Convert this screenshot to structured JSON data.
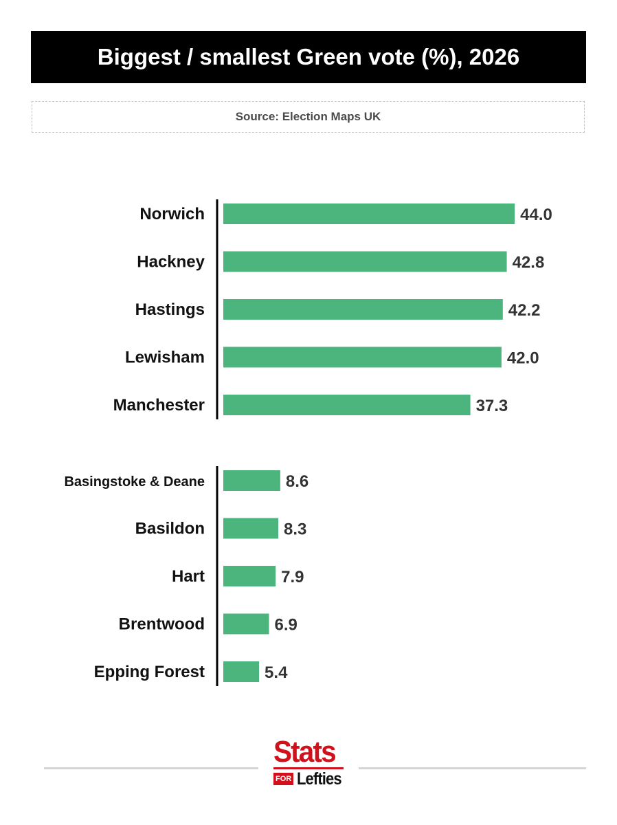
{
  "header": {
    "title": "Biggest / smallest Green vote (%), 2026",
    "source": "Source: Election Maps UK"
  },
  "chart_data": {
    "type": "bar",
    "orientation": "horizontal",
    "title": "Biggest / smallest Green vote (%), 2026",
    "bar_color": "#4cb57d",
    "groups": [
      {
        "categories": [
          "Norwich",
          "Hackney",
          "Hastings",
          "Lewisham",
          "Manchester"
        ],
        "values": [
          44.0,
          42.8,
          42.2,
          42.0,
          37.3
        ],
        "labels": [
          "44.0",
          "42.8",
          "42.2",
          "42.0",
          "37.3"
        ]
      },
      {
        "categories": [
          "Basingstoke & Deane",
          "Basildon",
          "Hart",
          "Brentwood",
          "Epping Forest"
        ],
        "values": [
          8.6,
          8.3,
          7.9,
          6.9,
          5.4
        ],
        "labels": [
          "8.6",
          "8.3",
          "7.9",
          "6.9",
          "5.4"
        ]
      }
    ]
  },
  "footer": {
    "logo_top": "Stats",
    "logo_for": "FOR",
    "logo_bottom": "Lefties",
    "logo_color": "#d0111b"
  }
}
